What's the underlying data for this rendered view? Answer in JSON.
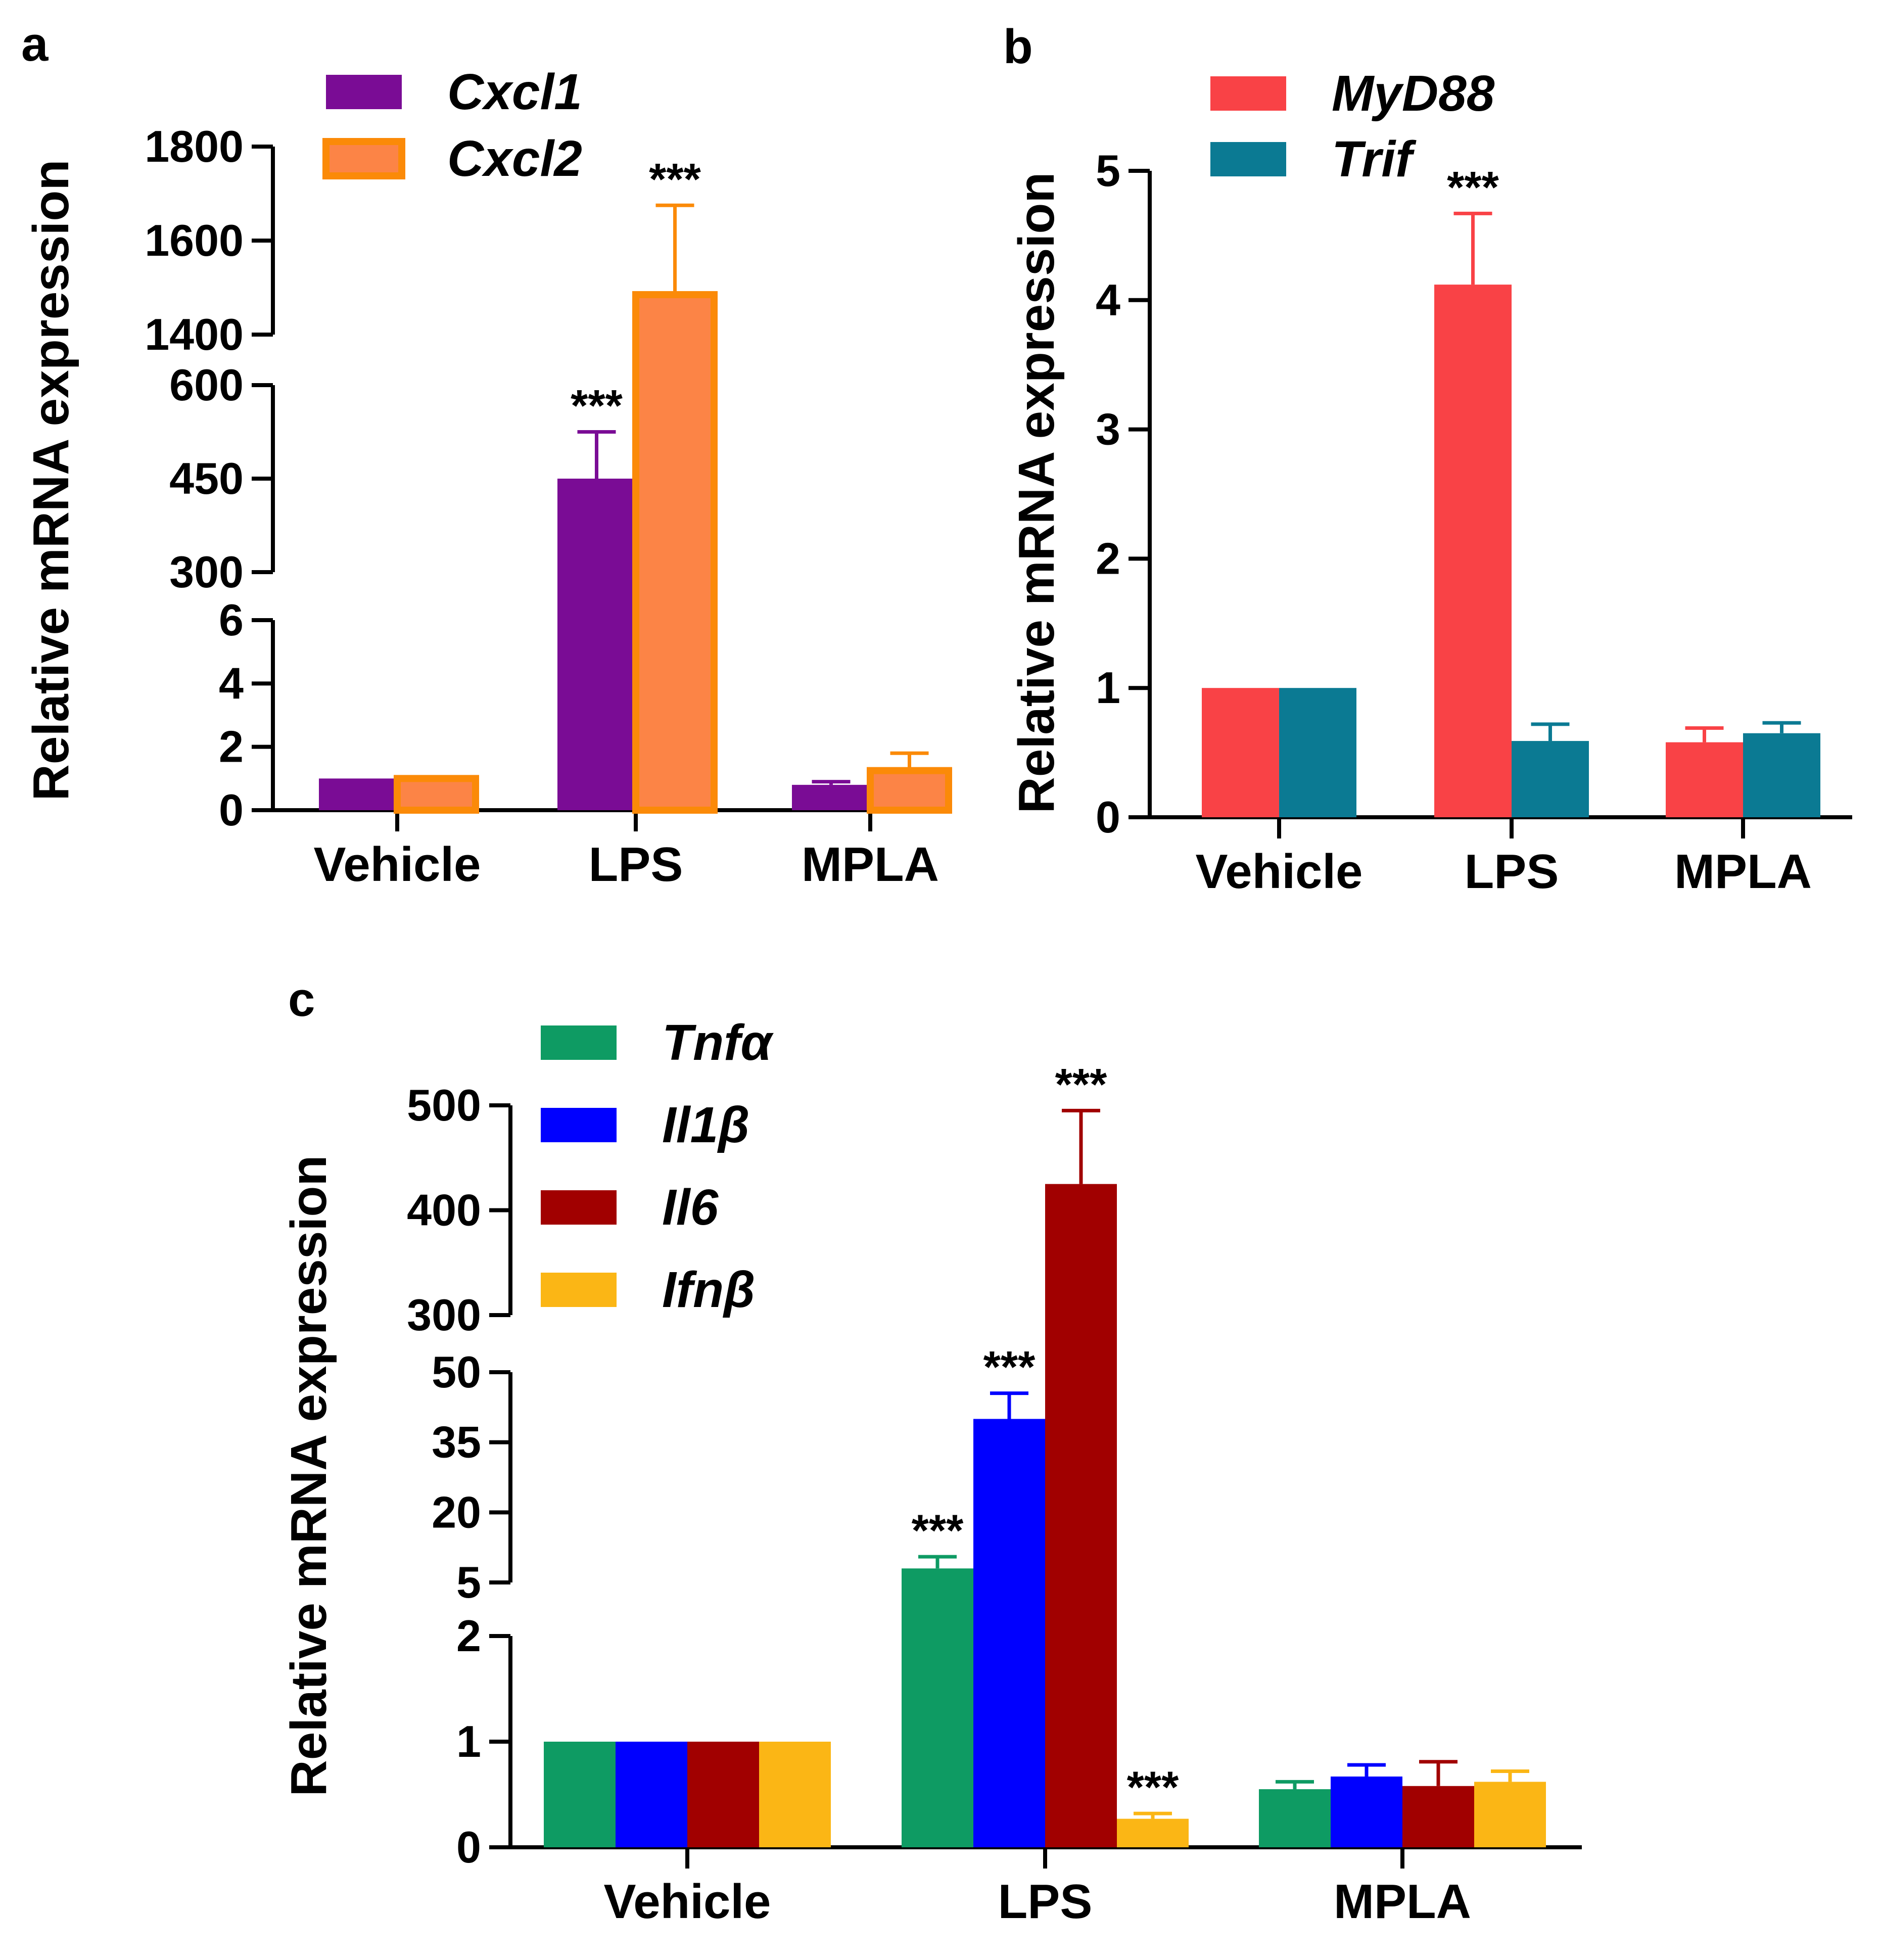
{
  "colors": {
    "cxcl1": "#7A0C95",
    "cxcl2_fill": "#FC8446",
    "cxcl2_edge": "#FB8A08",
    "myd88": "#F94246",
    "trif": "#0B7A93",
    "tnfa": "#0E9B63",
    "il1b": "#0000FF",
    "il6": "#A10000",
    "ifnb": "#FBB615"
  },
  "chart_data": [
    {
      "panel": "a",
      "type": "bar",
      "ylabel": "Relative mRNA expression",
      "categories": [
        "Vehicle",
        "LPS",
        "MPLA"
      ],
      "y_segments": [
        {
          "range": [
            0,
            6
          ],
          "ticks": [
            "0",
            "2",
            "4",
            "6"
          ]
        },
        {
          "range": [
            300,
            600
          ],
          "ticks": [
            "300",
            "450",
            "600"
          ]
        },
        {
          "range": [
            1400,
            1800
          ],
          "ticks": [
            "1400",
            "1600",
            "1800"
          ]
        }
      ],
      "series": [
        {
          "name": "Cxcl1",
          "values": [
            1,
            450,
            0.8
          ],
          "errors": [
            0,
            75,
            0.1
          ]
        },
        {
          "name": "Cxcl2",
          "values": [
            1,
            1485,
            1.25
          ],
          "errors": [
            0,
            190,
            0.55
          ]
        }
      ],
      "significance": [
        {
          "series": "Cxcl1",
          "category": "LPS",
          "label": "***"
        },
        {
          "series": "Cxcl2",
          "category": "LPS",
          "label": "***"
        }
      ]
    },
    {
      "panel": "b",
      "type": "bar",
      "ylabel": "Relative mRNA expression",
      "categories": [
        "Vehicle",
        "LPS",
        "MPLA"
      ],
      "ylim": [
        0,
        5
      ],
      "ticks": [
        "0",
        "1",
        "2",
        "3",
        "4",
        "5"
      ],
      "series": [
        {
          "name": "MyD88",
          "values": [
            1,
            4.12,
            0.58
          ],
          "errors": [
            0,
            0.55,
            0.11
          ]
        },
        {
          "name": "Trif",
          "values": [
            1,
            0.59,
            0.65
          ],
          "errors": [
            0,
            0.13,
            0.08
          ]
        }
      ],
      "significance": [
        {
          "series": "MyD88",
          "category": "LPS",
          "label": "***"
        }
      ]
    },
    {
      "panel": "c",
      "type": "bar",
      "ylabel": "Relative mRNA expression",
      "categories": [
        "Vehicle",
        "LPS",
        "MPLA"
      ],
      "y_segments": [
        {
          "range": [
            0,
            2
          ],
          "ticks": [
            "0",
            "1",
            "2"
          ]
        },
        {
          "range": [
            5,
            50
          ],
          "ticks": [
            "5",
            "20",
            "35",
            "50"
          ]
        },
        {
          "range": [
            300,
            500
          ],
          "ticks": [
            "300",
            "400",
            "500"
          ]
        }
      ],
      "series": [
        {
          "name": "Tnfα",
          "values": [
            1,
            8,
            0.55
          ],
          "errors": [
            0,
            2.5,
            0.07
          ]
        },
        {
          "name": "Il1β",
          "values": [
            1,
            40,
            0.67
          ],
          "errors": [
            0,
            5.5,
            0.11
          ]
        },
        {
          "name": "Il6",
          "values": [
            1,
            425,
            0.58
          ],
          "errors": [
            0,
            70,
            0.23
          ]
        },
        {
          "name": "Ifnβ",
          "values": [
            1,
            0.27,
            0.62
          ],
          "errors": [
            0,
            0.05,
            0.1
          ]
        }
      ],
      "significance": [
        {
          "series": "Tnfα",
          "category": "LPS",
          "label": "***"
        },
        {
          "series": "Il1β",
          "category": "LPS",
          "label": "***"
        },
        {
          "series": "Il6",
          "category": "LPS",
          "label": "***"
        },
        {
          "series": "Ifnβ",
          "category": "LPS",
          "label": "***"
        }
      ]
    }
  ]
}
